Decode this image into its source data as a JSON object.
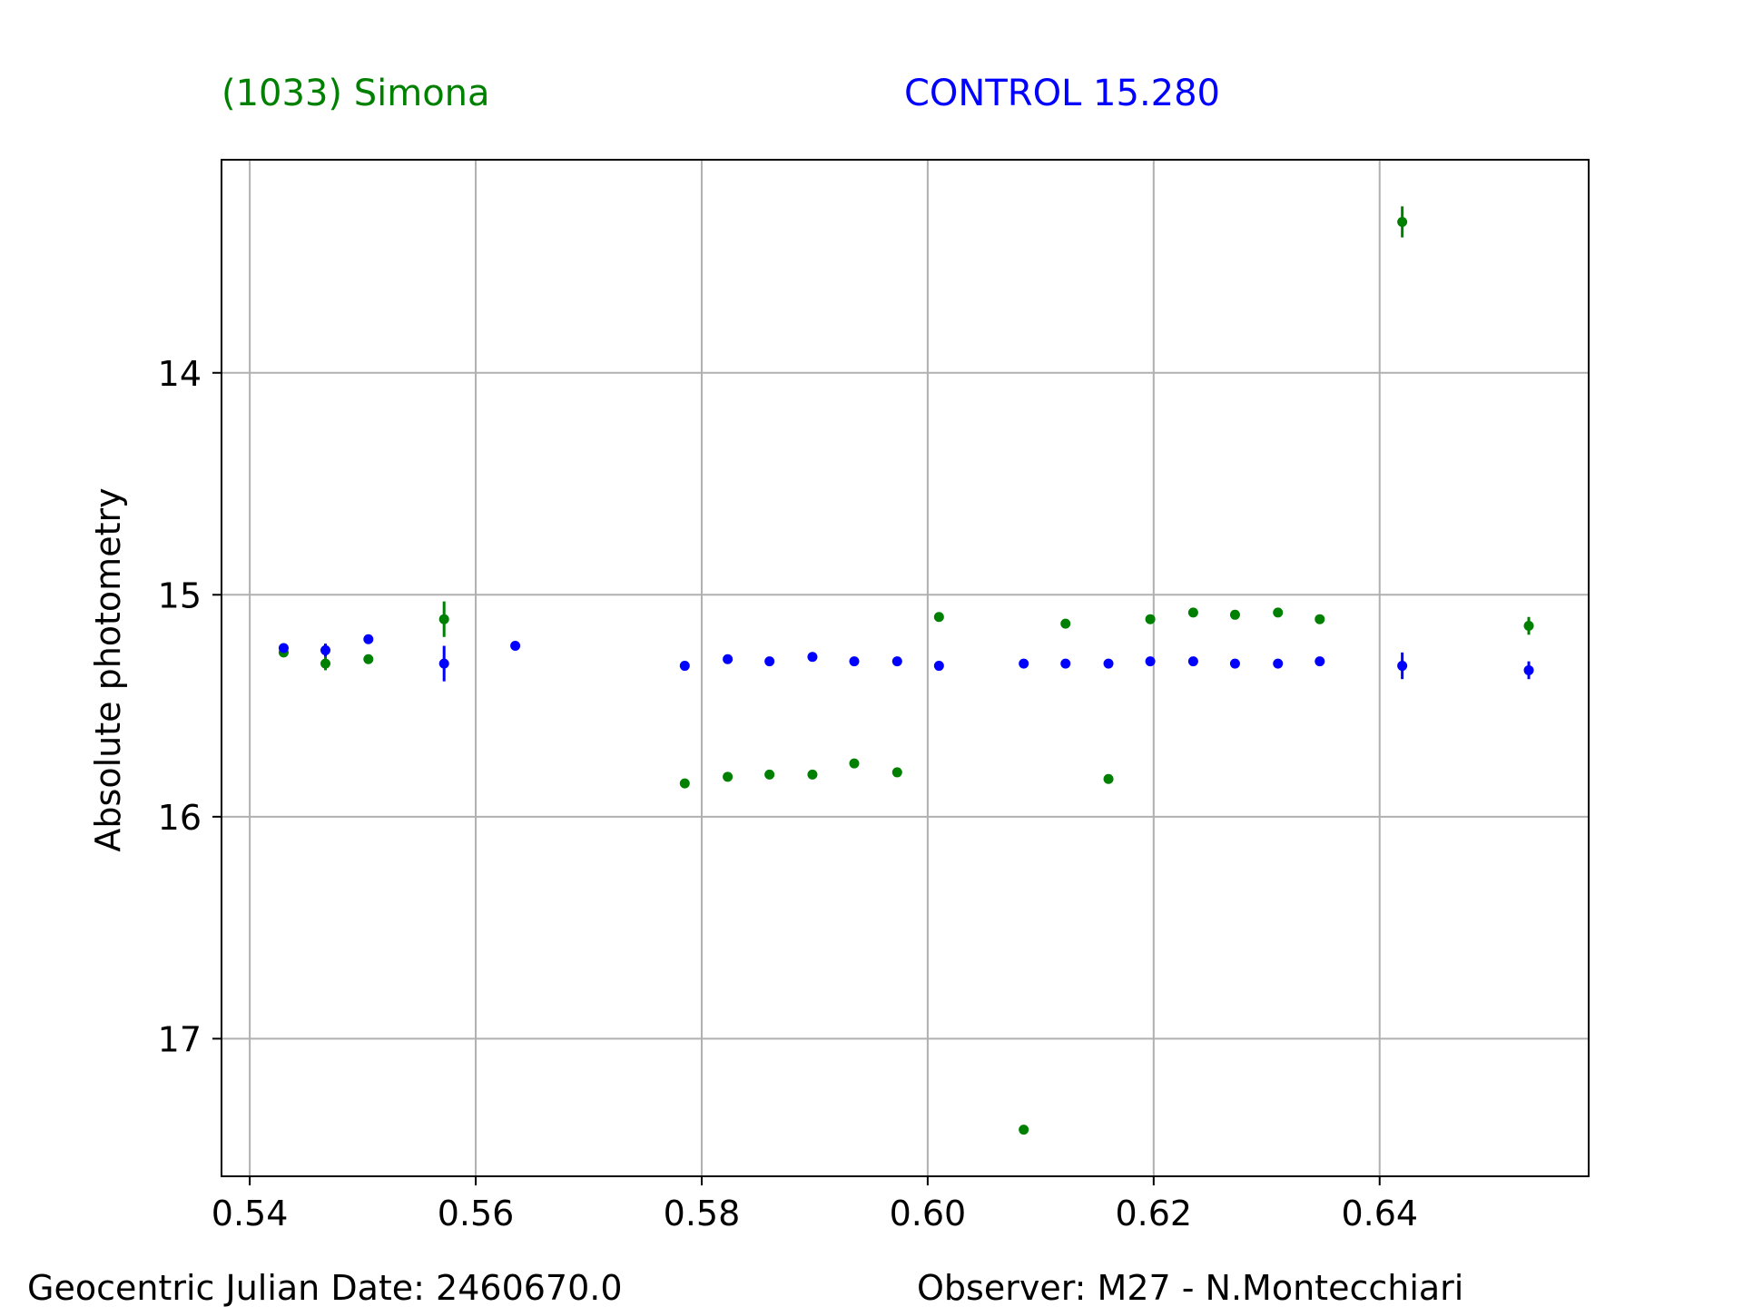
{
  "header": {
    "object_label": "(1033) Simona",
    "control_label": "CONTROL 15.280"
  },
  "footer": {
    "date_label": "Geocentric Julian Date: 2460670.0",
    "observer_label": "Observer: M27 - N.Montecchiari"
  },
  "colors": {
    "object": "#008000",
    "control": "#0000ff",
    "grid": "#b0b0b0",
    "axis": "#000000"
  },
  "chart_data": {
    "type": "scatter",
    "title": "",
    "xlabel": "",
    "ylabel": "Absolute photometry",
    "xlim": [
      0.5375,
      0.6585
    ],
    "ylim": [
      17.62,
      13.04
    ],
    "y_inverted": true,
    "grid": true,
    "x_ticks": [
      0.54,
      0.56,
      0.58,
      0.6,
      0.62,
      0.64
    ],
    "x_tick_labels": [
      "0.54",
      "0.56",
      "0.58",
      "0.60",
      "0.62",
      "0.64"
    ],
    "y_ticks": [
      14,
      15,
      16,
      17
    ],
    "y_tick_labels": [
      "14",
      "15",
      "16",
      "17"
    ],
    "series": [
      {
        "name": "(1033) Simona",
        "color": "#008000",
        "points": [
          {
            "x": 0.543,
            "y": 15.26,
            "err": 0.02
          },
          {
            "x": 0.5467,
            "y": 15.31,
            "err": 0.03
          },
          {
            "x": 0.5505,
            "y": 15.29,
            "err": 0.02
          },
          {
            "x": 0.5572,
            "y": 15.11,
            "err": 0.08
          },
          {
            "x": 0.5785,
            "y": 15.85,
            "err": 0.01
          },
          {
            "x": 0.5823,
            "y": 15.82,
            "err": 0.01
          },
          {
            "x": 0.586,
            "y": 15.81,
            "err": 0.01
          },
          {
            "x": 0.5898,
            "y": 15.81,
            "err": 0.01
          },
          {
            "x": 0.5935,
            "y": 15.76,
            "err": 0.01
          },
          {
            "x": 0.5973,
            "y": 15.8,
            "err": 0.01
          },
          {
            "x": 0.601,
            "y": 15.1,
            "err": 0.01
          },
          {
            "x": 0.6085,
            "y": 17.41,
            "err": 0.01
          },
          {
            "x": 0.6122,
            "y": 15.13,
            "err": 0.01
          },
          {
            "x": 0.616,
            "y": 15.83,
            "err": 0.01
          },
          {
            "x": 0.6197,
            "y": 15.11,
            "err": 0.01
          },
          {
            "x": 0.6235,
            "y": 15.08,
            "err": 0.01
          },
          {
            "x": 0.6272,
            "y": 15.09,
            "err": 0.01
          },
          {
            "x": 0.631,
            "y": 15.08,
            "err": 0.01
          },
          {
            "x": 0.6347,
            "y": 15.11,
            "err": 0.01
          },
          {
            "x": 0.642,
            "y": 13.32,
            "err": 0.07
          },
          {
            "x": 0.6532,
            "y": 15.14,
            "err": 0.04
          }
        ]
      },
      {
        "name": "CONTROL 15.280",
        "color": "#0000ff",
        "points": [
          {
            "x": 0.543,
            "y": 15.24,
            "err": 0.02
          },
          {
            "x": 0.5467,
            "y": 15.25,
            "err": 0.03
          },
          {
            "x": 0.5505,
            "y": 15.2,
            "err": 0.01
          },
          {
            "x": 0.5635,
            "y": 15.23,
            "err": 0.01
          },
          {
            "x": 0.5572,
            "y": 15.31,
            "err": 0.08
          },
          {
            "x": 0.5785,
            "y": 15.32,
            "err": 0.01
          },
          {
            "x": 0.5823,
            "y": 15.29,
            "err": 0.01
          },
          {
            "x": 0.586,
            "y": 15.3,
            "err": 0.01
          },
          {
            "x": 0.5898,
            "y": 15.28,
            "err": 0.01
          },
          {
            "x": 0.5935,
            "y": 15.3,
            "err": 0.01
          },
          {
            "x": 0.5973,
            "y": 15.3,
            "err": 0.01
          },
          {
            "x": 0.601,
            "y": 15.32,
            "err": 0.01
          },
          {
            "x": 0.6085,
            "y": 15.31,
            "err": 0.01
          },
          {
            "x": 0.6122,
            "y": 15.31,
            "err": 0.01
          },
          {
            "x": 0.616,
            "y": 15.31,
            "err": 0.01
          },
          {
            "x": 0.6197,
            "y": 15.3,
            "err": 0.01
          },
          {
            "x": 0.6235,
            "y": 15.3,
            "err": 0.01
          },
          {
            "x": 0.6272,
            "y": 15.31,
            "err": 0.01
          },
          {
            "x": 0.631,
            "y": 15.31,
            "err": 0.01
          },
          {
            "x": 0.6347,
            "y": 15.3,
            "err": 0.01
          },
          {
            "x": 0.642,
            "y": 15.32,
            "err": 0.06
          },
          {
            "x": 0.6532,
            "y": 15.34,
            "err": 0.04
          }
        ]
      }
    ]
  }
}
